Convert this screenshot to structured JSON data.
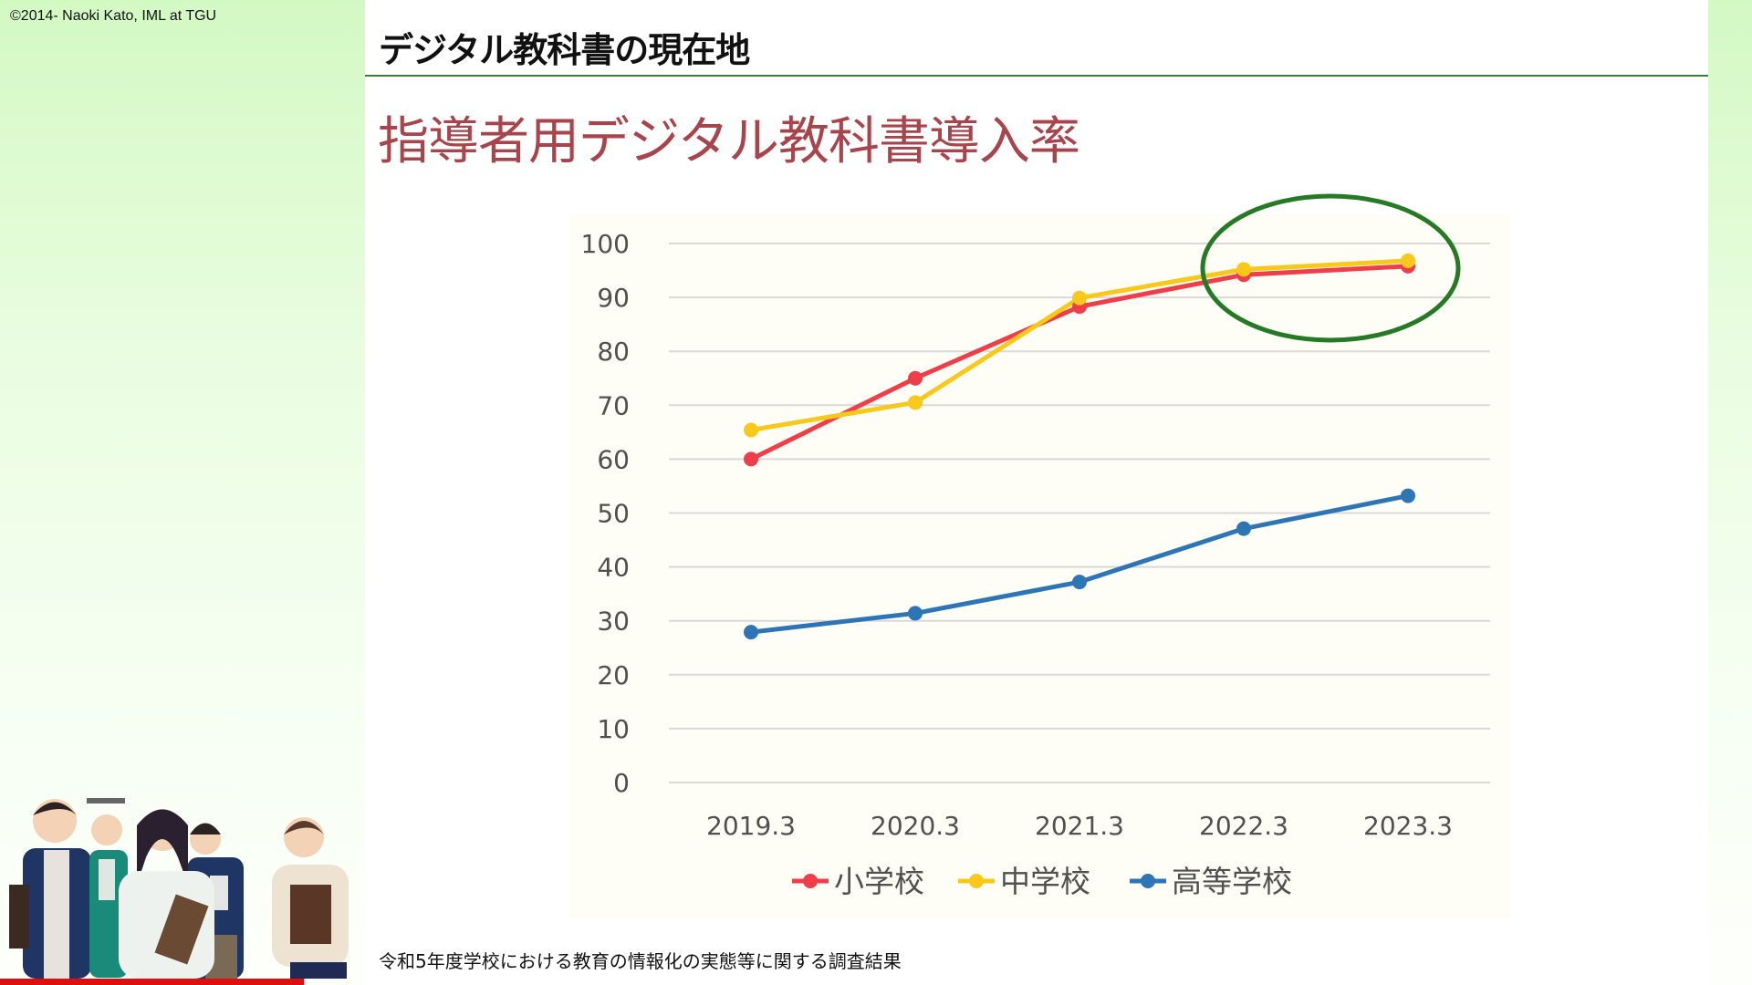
{
  "copyright": "©2014- Naoki Kato, IML at TGU",
  "header": {
    "title": "デジタル教科書の現在地"
  },
  "slide_title": "指導者用デジタル教科書導入率",
  "caption": "令和5年度学校における教育の情報化の実態等に関する調査結果",
  "colors": {
    "header_rule": "#3e7d3b",
    "slide_title": "#a8444b",
    "highlight_ellipse": "#267a25",
    "bottom_bar": "#e10e0e"
  },
  "illustration": {
    "description": "anime-style students holding books and tablets"
  },
  "chart_data": {
    "type": "line",
    "title": "",
    "xlabel": "",
    "ylabel": "",
    "categories": [
      "2019.3",
      "2020.3",
      "2021.3",
      "2022.3",
      "2023.3"
    ],
    "ylim": [
      0,
      100
    ],
    "yticks": [
      0,
      10,
      20,
      30,
      40,
      50,
      60,
      70,
      80,
      90,
      100
    ],
    "grid": true,
    "legend_position": "bottom",
    "series": [
      {
        "name": "小学校",
        "color": "#ef3e4a",
        "values": [
          60.0,
          75.0,
          88.3,
          94.2,
          95.8
        ]
      },
      {
        "name": "中学校",
        "color": "#f8c81a",
        "values": [
          65.4,
          70.5,
          89.9,
          95.2,
          96.8
        ]
      },
      {
        "name": "高等学校",
        "color": "#2e75b6",
        "values": [
          27.9,
          31.4,
          37.2,
          47.1,
          53.2
        ]
      }
    ],
    "annotation": {
      "type": "ellipse",
      "highlights": [
        "2022.3",
        "2023.3"
      ],
      "range_y": [
        92,
        98
      ]
    }
  }
}
